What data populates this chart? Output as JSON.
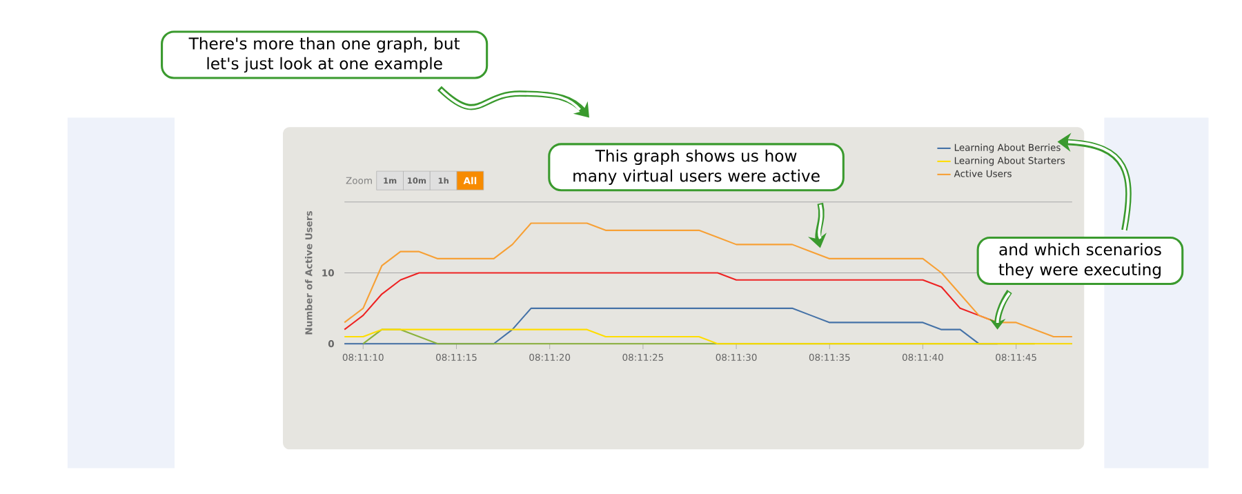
{
  "chart_data": {
    "type": "line",
    "ylabel": "Number of Active Users",
    "x": [
      8.185833,
      8.186111,
      8.186389,
      8.186667,
      8.186944,
      8.187222,
      8.1875,
      8.187778,
      8.188056,
      8.188333,
      8.188611,
      8.188889,
      8.189167,
      8.189444,
      8.189722,
      8.19,
      8.190278,
      8.190556,
      8.190833,
      8.191111,
      8.191389,
      8.191667,
      8.191944,
      8.192222,
      8.1925,
      8.192778,
      8.193056,
      8.193333,
      8.193611,
      8.193889,
      8.194167,
      8.194444,
      8.194722,
      8.195,
      8.195278,
      8.195556,
      8.195833,
      8.196111,
      8.196389,
      8.196667
    ],
    "series": [
      {
        "name": "Learning About Berries",
        "color": "#4572a7",
        "values": [
          0,
          0,
          0,
          0,
          0,
          0,
          0,
          0,
          0,
          2,
          5,
          5,
          5,
          5,
          5,
          5,
          5,
          5,
          5,
          5,
          5,
          5,
          5,
          5,
          5,
          4,
          3,
          3,
          3,
          3,
          3,
          3,
          2,
          2,
          0,
          0,
          null,
          null,
          null,
          null
        ]
      },
      {
        "color": "#8bb23c",
        "values": [
          null,
          0,
          2,
          2,
          1,
          0,
          0,
          0,
          0,
          0,
          0,
          0,
          0,
          0,
          0,
          0,
          0,
          0,
          0,
          0,
          0,
          0,
          0,
          0,
          0,
          0,
          0,
          0,
          0,
          0,
          0,
          0,
          0,
          0,
          0,
          0,
          0,
          0,
          null,
          null
        ]
      },
      {
        "color": "#ee2222",
        "values": [
          2,
          4,
          7,
          9,
          10,
          10,
          10,
          10,
          10,
          10,
          10,
          10,
          10,
          10,
          10,
          10,
          10,
          10,
          10,
          10,
          10,
          9,
          9,
          9,
          9,
          9,
          9,
          9,
          9,
          9,
          9,
          9,
          8,
          5,
          4,
          3,
          null,
          null,
          null,
          null
        ]
      },
      {
        "name": "Learning About Starters",
        "color": "#ffdd00",
        "values": [
          1,
          1,
          2,
          2,
          2,
          2,
          2,
          2,
          2,
          2,
          2,
          2,
          2,
          2,
          1,
          1,
          1,
          1,
          1,
          1,
          0,
          0,
          0,
          0,
          0,
          0,
          0,
          0,
          0,
          0,
          0,
          0,
          0,
          0,
          0,
          0,
          0,
          0,
          0,
          0
        ]
      },
      {
        "name": "Active Users",
        "color": "#f7a035",
        "values": [
          3,
          5,
          11,
          13,
          13,
          12,
          12,
          12,
          12,
          14,
          17,
          17,
          17,
          17,
          16,
          16,
          16,
          16,
          16,
          16,
          15,
          14,
          14,
          14,
          14,
          13,
          12,
          12,
          12,
          12,
          12,
          12,
          10,
          7,
          4,
          3,
          3,
          2,
          1,
          1
        ]
      }
    ],
    "xlim": [
      8.185833,
      8.196667
    ],
    "xticks": [
      {
        "value": 8.186111,
        "label": "08:11:10"
      },
      {
        "value": 8.1875,
        "label": "08:11:15"
      },
      {
        "value": 8.188889,
        "label": "08:11:20"
      },
      {
        "value": 8.190278,
        "label": "08:11:25"
      },
      {
        "value": 8.191667,
        "label": "08:11:30"
      },
      {
        "value": 8.193056,
        "label": "08:11:35"
      },
      {
        "value": 8.194444,
        "label": "08:11:40"
      },
      {
        "value": 8.195833,
        "label": "08:11:45"
      }
    ],
    "ylim": [
      0,
      20
    ],
    "yticks": [
      0,
      10,
      {
        "value": 20,
        "label": null
      }
    ],
    "grid": "y",
    "legend": "top right",
    "annotations": [
      "There's more than one graph, but let's just look at one example",
      {
        "text": "This graph shows us how many virtual users were active",
        "x": 8.192917,
        "y": 13.5
      },
      {
        "text": "and which scenarios they were executing",
        "x": 8.195556,
        "y": 2
      },
      "Zoom",
      "1m",
      "10m",
      "1h",
      "All"
    ]
  }
}
